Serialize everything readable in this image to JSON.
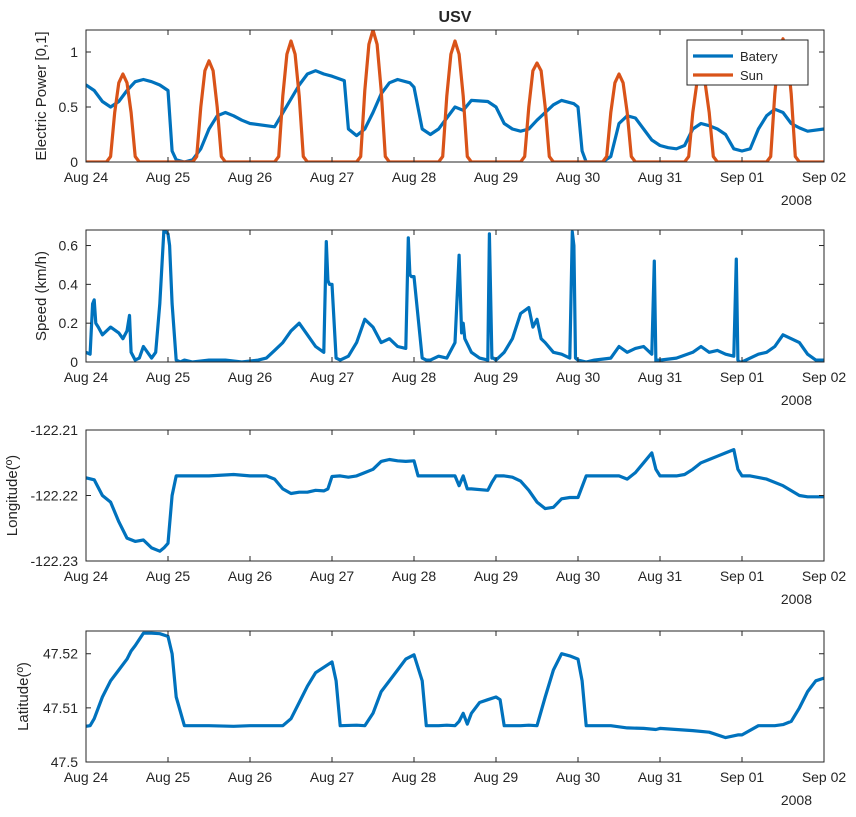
{
  "figure": {
    "title": "USV"
  },
  "colors": {
    "blue": "#0072BD",
    "orange": "#D95319",
    "axis": "#262626"
  },
  "shared_x": {
    "tick_labels": [
      "Aug 24",
      "Aug 25",
      "Aug 26",
      "Aug 27",
      "Aug 28",
      "Aug 29",
      "Aug 30",
      "Aug 31",
      "Sep 01",
      "Sep 02"
    ],
    "year_label": "2008",
    "xlim": [
      0,
      9
    ]
  },
  "chart_data": [
    {
      "type": "line",
      "title": "USV",
      "ylabel": "Electric Power [0,1]",
      "xlabel": "",
      "ylim": [
        0,
        1.2
      ],
      "yticks": [
        0,
        0.5,
        1
      ],
      "ytick_labels": [
        "0",
        "0.5",
        "1"
      ],
      "legend": {
        "position": "top-right",
        "entries": [
          "Batery",
          "Sun"
        ]
      },
      "series": [
        {
          "name": "Batery",
          "color": "#0072BD",
          "x": [
            0,
            0.1,
            0.2,
            0.3,
            0.4,
            0.5,
            0.6,
            0.7,
            0.8,
            0.9,
            1.0,
            1.05,
            1.1,
            1.2,
            1.3,
            1.4,
            1.5,
            1.6,
            1.7,
            1.8,
            1.9,
            2.0,
            2.3,
            2.6,
            2.7,
            2.8,
            2.9,
            3.0,
            3.15,
            3.2,
            3.3,
            3.4,
            3.5,
            3.6,
            3.7,
            3.8,
            3.95,
            4.0,
            4.1,
            4.2,
            4.3,
            4.4,
            4.5,
            4.6,
            4.7,
            4.9,
            5.0,
            5.1,
            5.2,
            5.3,
            5.4,
            5.5,
            5.6,
            5.7,
            5.8,
            5.95,
            6.0,
            6.05,
            6.1,
            6.2,
            6.3,
            6.4,
            6.5,
            6.6,
            6.7,
            6.8,
            6.9,
            7.0,
            7.1,
            7.2,
            7.3,
            7.4,
            7.5,
            7.6,
            7.7,
            7.8,
            7.9,
            8.0,
            8.1,
            8.2,
            8.3,
            8.4,
            8.5,
            8.6,
            8.7,
            8.8,
            9.0
          ],
          "y": [
            0.7,
            0.65,
            0.55,
            0.5,
            0.55,
            0.65,
            0.73,
            0.75,
            0.73,
            0.7,
            0.65,
            0.1,
            0.02,
            0.0,
            0.02,
            0.12,
            0.3,
            0.42,
            0.45,
            0.42,
            0.38,
            0.35,
            0.32,
            0.7,
            0.8,
            0.83,
            0.8,
            0.78,
            0.74,
            0.3,
            0.24,
            0.3,
            0.45,
            0.62,
            0.72,
            0.75,
            0.72,
            0.68,
            0.3,
            0.25,
            0.3,
            0.4,
            0.5,
            0.47,
            0.56,
            0.55,
            0.5,
            0.35,
            0.3,
            0.28,
            0.3,
            0.38,
            0.45,
            0.52,
            0.56,
            0.53,
            0.5,
            0.1,
            0.0,
            0.0,
            0.0,
            0.05,
            0.35,
            0.42,
            0.4,
            0.3,
            0.2,
            0.15,
            0.13,
            0.12,
            0.15,
            0.3,
            0.35,
            0.33,
            0.3,
            0.25,
            0.12,
            0.1,
            0.12,
            0.3,
            0.42,
            0.48,
            0.45,
            0.35,
            0.31,
            0.28,
            0.3
          ]
        },
        {
          "name": "Sun",
          "color": "#D95319",
          "x": [
            0,
            0.25,
            0.3,
            0.35,
            0.4,
            0.45,
            0.5,
            0.55,
            0.6,
            0.65,
            0.7,
            1.0,
            1.3,
            1.35,
            1.4,
            1.45,
            1.5,
            1.55,
            1.6,
            1.65,
            1.7,
            2.0,
            2.3,
            2.35,
            2.4,
            2.45,
            2.5,
            2.55,
            2.6,
            2.65,
            2.7,
            3.0,
            3.3,
            3.35,
            3.4,
            3.45,
            3.5,
            3.55,
            3.6,
            3.65,
            3.7,
            4.0,
            4.3,
            4.35,
            4.4,
            4.45,
            4.5,
            4.55,
            4.6,
            4.65,
            4.7,
            5.0,
            5.3,
            5.35,
            5.4,
            5.45,
            5.5,
            5.55,
            5.6,
            5.65,
            5.7,
            6.0,
            6.3,
            6.35,
            6.4,
            6.45,
            6.5,
            6.55,
            6.6,
            6.65,
            6.7,
            7.0,
            7.3,
            7.35,
            7.4,
            7.45,
            7.5,
            7.55,
            7.6,
            7.65,
            7.7,
            8.0,
            8.3,
            8.35,
            8.4,
            8.45,
            8.5,
            8.55,
            8.6,
            8.65,
            8.7,
            9.0
          ],
          "y": [
            0,
            0,
            0.05,
            0.45,
            0.72,
            0.8,
            0.72,
            0.45,
            0.05,
            0,
            0,
            0,
            0,
            0.05,
            0.5,
            0.83,
            0.92,
            0.83,
            0.5,
            0.05,
            0,
            0,
            0,
            0.05,
            0.6,
            0.98,
            1.1,
            0.98,
            0.6,
            0.05,
            0,
            0,
            0,
            0.05,
            0.65,
            1.07,
            1.2,
            1.07,
            0.65,
            0.05,
            0,
            0,
            0,
            0.05,
            0.6,
            0.98,
            1.1,
            0.98,
            0.6,
            0.05,
            0,
            0,
            0,
            0.05,
            0.5,
            0.83,
            0.9,
            0.83,
            0.5,
            0.05,
            0,
            0,
            0,
            0.05,
            0.45,
            0.72,
            0.8,
            0.72,
            0.45,
            0.05,
            0,
            0,
            0,
            0.05,
            0.45,
            0.72,
            0.8,
            0.72,
            0.45,
            0.05,
            0,
            0,
            0,
            0.05,
            0.62,
            1.0,
            1.12,
            1.0,
            0.62,
            0.05,
            0,
            0
          ]
        }
      ]
    },
    {
      "type": "line",
      "ylabel": "Speed (km/h)",
      "xlabel": "",
      "ylim": [
        0,
        0.68
      ],
      "yticks": [
        0,
        0.2,
        0.4,
        0.6
      ],
      "ytick_labels": [
        "0",
        "0.2",
        "0.4",
        "0.6"
      ],
      "series": [
        {
          "name": "Speed",
          "color": "#0072BD",
          "x": [
            0,
            0.05,
            0.08,
            0.1,
            0.12,
            0.15,
            0.2,
            0.3,
            0.4,
            0.45,
            0.5,
            0.53,
            0.55,
            0.6,
            0.65,
            0.7,
            0.75,
            0.8,
            0.85,
            0.9,
            0.95,
            1.0,
            1.02,
            1.05,
            1.1,
            1.15,
            1.2,
            1.3,
            1.5,
            1.7,
            1.9,
            2.1,
            2.2,
            2.3,
            2.4,
            2.5,
            2.6,
            2.7,
            2.8,
            2.9,
            2.93,
            2.95,
            2.97,
            3.0,
            3.05,
            3.1,
            3.2,
            3.3,
            3.4,
            3.5,
            3.6,
            3.7,
            3.8,
            3.9,
            3.93,
            3.95,
            3.97,
            4.0,
            4.1,
            4.15,
            4.2,
            4.3,
            4.4,
            4.5,
            4.55,
            4.58,
            4.6,
            4.62,
            4.7,
            4.8,
            4.9,
            4.92,
            4.95,
            4.97,
            5.0,
            5.1,
            5.2,
            5.3,
            5.4,
            5.45,
            5.5,
            5.55,
            5.6,
            5.7,
            5.8,
            5.9,
            5.93,
            5.95,
            5.97,
            6.0,
            6.1,
            6.2,
            6.4,
            6.5,
            6.6,
            6.7,
            6.8,
            6.9,
            6.93,
            6.95,
            6.97,
            7.0,
            7.2,
            7.4,
            7.5,
            7.6,
            7.7,
            7.8,
            7.9,
            7.93,
            7.95,
            7.97,
            8.0,
            8.1,
            8.2,
            8.3,
            8.4,
            8.5,
            8.6,
            8.7,
            8.8,
            8.9,
            9.0
          ],
          "y": [
            0.05,
            0.04,
            0.3,
            0.32,
            0.2,
            0.18,
            0.14,
            0.18,
            0.15,
            0.12,
            0.16,
            0.24,
            0.05,
            0.01,
            0.02,
            0.08,
            0.05,
            0.02,
            0.05,
            0.3,
            0.68,
            0.66,
            0.6,
            0.3,
            0.01,
            0.0,
            0.01,
            0.0,
            0.01,
            0.01,
            0.0,
            0.01,
            0.02,
            0.06,
            0.1,
            0.16,
            0.2,
            0.14,
            0.08,
            0.05,
            0.62,
            0.42,
            0.4,
            0.4,
            0.02,
            0.01,
            0.03,
            0.1,
            0.22,
            0.18,
            0.1,
            0.12,
            0.08,
            0.07,
            0.64,
            0.45,
            0.44,
            0.44,
            0.02,
            0.01,
            0.01,
            0.03,
            0.02,
            0.1,
            0.55,
            0.15,
            0.2,
            0.12,
            0.05,
            0.02,
            0.01,
            0.66,
            0.02,
            0.02,
            0.01,
            0.05,
            0.12,
            0.25,
            0.28,
            0.18,
            0.22,
            0.12,
            0.1,
            0.05,
            0.04,
            0.02,
            0.67,
            0.6,
            0.02,
            0.01,
            0.0,
            0.01,
            0.02,
            0.08,
            0.05,
            0.07,
            0.08,
            0.04,
            0.52,
            0.0,
            0.01,
            0.01,
            0.02,
            0.05,
            0.08,
            0.05,
            0.06,
            0.04,
            0.03,
            0.53,
            0.01,
            0.0,
            0.0,
            0.02,
            0.04,
            0.05,
            0.08,
            0.14,
            0.12,
            0.1,
            0.04,
            0.01,
            0.01
          ]
        }
      ]
    },
    {
      "type": "line",
      "ylabel": "Longitude(º)",
      "xlabel": "",
      "ylim": [
        -122.23,
        -122.21
      ],
      "yticks": [
        -122.23,
        -122.22,
        -122.21
      ],
      "ytick_labels": [
        "-122.23",
        "-122.22",
        "-122.21"
      ],
      "series": [
        {
          "name": "Longitude",
          "color": "#0072BD",
          "x": [
            0,
            0.1,
            0.2,
            0.3,
            0.4,
            0.5,
            0.6,
            0.7,
            0.8,
            0.9,
            0.95,
            1.0,
            1.05,
            1.1,
            1.2,
            1.5,
            1.8,
            2.0,
            2.2,
            2.3,
            2.4,
            2.5,
            2.6,
            2.7,
            2.8,
            2.9,
            2.95,
            3.0,
            3.1,
            3.2,
            3.3,
            3.4,
            3.5,
            3.6,
            3.7,
            3.8,
            3.9,
            4.0,
            4.05,
            4.1,
            4.5,
            4.55,
            4.6,
            4.65,
            4.7,
            4.9,
            4.95,
            5.0,
            5.1,
            5.2,
            5.3,
            5.4,
            5.5,
            5.6,
            5.7,
            5.8,
            5.9,
            6.0,
            6.1,
            6.4,
            6.5,
            6.6,
            6.7,
            6.8,
            6.9,
            6.95,
            7.0,
            7.1,
            7.2,
            7.3,
            7.4,
            7.5,
            7.6,
            7.7,
            7.8,
            7.9,
            7.95,
            8.0,
            8.1,
            8.3,
            8.5,
            8.7,
            8.8,
            9.0
          ],
          "y": [
            -122.2173,
            -122.2176,
            -122.22,
            -122.221,
            -122.224,
            -122.2265,
            -122.227,
            -122.2268,
            -122.228,
            -122.2285,
            -122.228,
            -122.2273,
            -122.22,
            -122.217,
            -122.217,
            -122.217,
            -122.2168,
            -122.217,
            -122.217,
            -122.2175,
            -122.219,
            -122.2197,
            -122.2195,
            -122.2195,
            -122.2192,
            -122.2193,
            -122.219,
            -122.2171,
            -122.217,
            -122.2172,
            -122.217,
            -122.2165,
            -122.216,
            -122.2148,
            -122.2145,
            -122.2147,
            -122.2148,
            -122.2147,
            -122.217,
            -122.217,
            -122.217,
            -122.2185,
            -122.217,
            -122.219,
            -122.219,
            -122.2192,
            -122.218,
            -122.217,
            -122.217,
            -122.2172,
            -122.2178,
            -122.2192,
            -122.221,
            -122.222,
            -122.2218,
            -122.2205,
            -122.2203,
            -122.2203,
            -122.217,
            -122.217,
            -122.217,
            -122.2175,
            -122.2165,
            -122.215,
            -122.2135,
            -122.216,
            -122.217,
            -122.217,
            -122.217,
            -122.2168,
            -122.216,
            -122.215,
            -122.2145,
            -122.214,
            -122.2135,
            -122.213,
            -122.216,
            -122.217,
            -122.217,
            -122.2175,
            -122.2185,
            -122.22,
            -122.2202,
            -122.2202
          ]
        }
      ]
    },
    {
      "type": "line",
      "ylabel": "Latitude(º)",
      "xlabel": "",
      "ylim": [
        47.5,
        47.5242
      ],
      "yticks": [
        47.5,
        47.51,
        47.52
      ],
      "ytick_labels": [
        "47.5",
        "47.51",
        "47.52"
      ],
      "series": [
        {
          "name": "Latitude",
          "color": "#0072BD",
          "x": [
            0,
            0.05,
            0.1,
            0.2,
            0.3,
            0.4,
            0.5,
            0.55,
            0.6,
            0.7,
            0.8,
            0.9,
            1.0,
            1.05,
            1.1,
            1.2,
            1.5,
            1.8,
            2.0,
            2.4,
            2.5,
            2.6,
            2.7,
            2.8,
            2.9,
            3.0,
            3.05,
            3.1,
            3.3,
            3.4,
            3.5,
            3.6,
            3.8,
            3.9,
            4.0,
            4.1,
            4.15,
            4.3,
            4.4,
            4.5,
            4.55,
            4.6,
            4.65,
            4.7,
            4.8,
            4.9,
            5.0,
            5.05,
            5.1,
            5.3,
            5.4,
            5.5,
            5.6,
            5.7,
            5.8,
            5.9,
            6.0,
            6.05,
            6.1,
            6.4,
            6.6,
            6.8,
            6.95,
            7.0,
            7.2,
            7.4,
            7.6,
            7.8,
            7.95,
            8.0,
            8.2,
            8.4,
            8.5,
            8.6,
            8.7,
            8.8,
            8.9,
            9.0
          ],
          "y": [
            47.5066,
            47.5067,
            47.508,
            47.512,
            47.515,
            47.517,
            47.519,
            47.5205,
            47.5215,
            47.5238,
            47.5238,
            47.5237,
            47.5232,
            47.52,
            47.512,
            47.5067,
            47.5067,
            47.5066,
            47.5067,
            47.5067,
            47.508,
            47.511,
            47.514,
            47.5165,
            47.5175,
            47.5185,
            47.515,
            47.5067,
            47.5068,
            47.5067,
            47.509,
            47.513,
            47.517,
            47.519,
            47.5198,
            47.515,
            47.5067,
            47.5067,
            47.5068,
            47.5067,
            47.5075,
            47.509,
            47.507,
            47.509,
            47.511,
            47.5115,
            47.512,
            47.5115,
            47.5067,
            47.5067,
            47.5068,
            47.5067,
            47.512,
            47.517,
            47.52,
            47.5196,
            47.519,
            47.515,
            47.5067,
            47.5067,
            47.5063,
            47.5062,
            47.506,
            47.5062,
            47.506,
            47.5058,
            47.5055,
            47.5045,
            47.505,
            47.505,
            47.5067,
            47.5067,
            47.5069,
            47.5075,
            47.51,
            47.513,
            47.515,
            47.5155
          ]
        }
      ]
    }
  ]
}
